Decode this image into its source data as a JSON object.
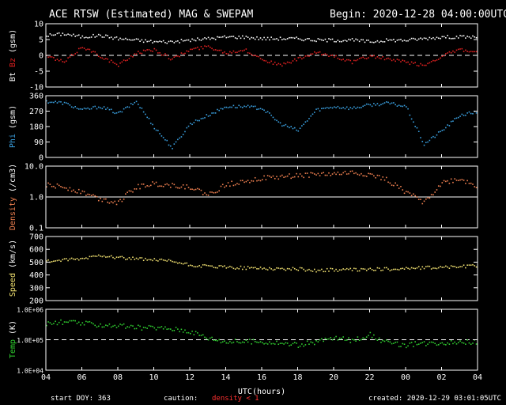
{
  "header": {
    "title": "ACE RTSW (Estimated) MAG & SWEPAM",
    "begin": "Begin: 2020-12-28 04:00:00UTC"
  },
  "footer": {
    "start_doy": "start DOY: 363",
    "caution": "caution:",
    "density_note": "density < 1",
    "created": "created: 2020-12-29 03:01:05UTC"
  },
  "colors": {
    "background": "#000000",
    "axes": "#ffffff",
    "bt": "#ffffff",
    "bz": "#e02020",
    "phi": "#3aa0e0",
    "density": "#f08050",
    "speed": "#f0e070",
    "temp": "#30d030",
    "caution": "#ff3030"
  },
  "chart_data": [
    {
      "type": "scatter",
      "title": "",
      "ylabel_parts": [
        "Bt",
        "Bz",
        "(gsm)"
      ],
      "ylim": [
        -10,
        10
      ],
      "yticks": [
        10,
        5,
        0,
        -5,
        -10
      ],
      "ytick_labels": [
        "10",
        "5",
        "0",
        "-5",
        "-10"
      ],
      "reference_line": 0,
      "series": [
        {
          "name": "Bt",
          "color": "#ffffff",
          "x": [
            0,
            1,
            2,
            3,
            4,
            5,
            6,
            7,
            8,
            9,
            10,
            11,
            12,
            13,
            14,
            15,
            16,
            17,
            18,
            19,
            20,
            21,
            22,
            23,
            24
          ],
          "y": [
            6.5,
            7,
            6,
            6.5,
            5.5,
            5,
            4.5,
            4.5,
            5,
            5.5,
            6,
            6,
            5.5,
            5.5,
            5.5,
            5,
            5,
            5,
            4.5,
            5,
            5,
            5.5,
            6,
            6,
            6
          ]
        },
        {
          "name": "Bz",
          "color": "#e02020",
          "x": [
            0,
            1,
            2,
            3,
            4,
            5,
            6,
            7,
            8,
            9,
            10,
            11,
            12,
            13,
            14,
            15,
            16,
            17,
            18,
            19,
            20,
            21,
            22,
            23,
            24
          ],
          "y": [
            0,
            -2,
            3,
            0,
            -3,
            1,
            2,
            -1,
            2,
            3,
            1,
            2,
            -1,
            -3,
            -1,
            1,
            0,
            -2,
            0,
            -1,
            -2,
            -3,
            0,
            2,
            1
          ]
        }
      ]
    },
    {
      "type": "scatter",
      "title": "",
      "ylabel_parts": [
        "Phi",
        "(gsm)"
      ],
      "ylim": [
        0,
        360
      ],
      "yticks": [
        360,
        270,
        180,
        90,
        0
      ],
      "ytick_labels": [
        "360",
        "270",
        "180",
        "90",
        "0"
      ],
      "series": [
        {
          "name": "Phi",
          "color": "#3aa0e0",
          "x": [
            0,
            1,
            2,
            3,
            4,
            5,
            6,
            7,
            8,
            9,
            10,
            11,
            12,
            13,
            14,
            15,
            16,
            17,
            18,
            19,
            20,
            21,
            22,
            23,
            24
          ],
          "y": [
            330,
            320,
            280,
            300,
            260,
            330,
            180,
            60,
            200,
            250,
            300,
            300,
            290,
            200,
            160,
            280,
            300,
            290,
            310,
            320,
            300,
            80,
            160,
            250,
            270
          ]
        }
      ]
    },
    {
      "type": "scatter",
      "title": "",
      "ylabel_parts": [
        "Density",
        "(/cm3)"
      ],
      "yscale": "log",
      "ylim": [
        0.1,
        10
      ],
      "yticks": [
        10,
        1,
        0.1
      ],
      "ytick_labels": [
        "10.0",
        "1.0",
        "0.1"
      ],
      "reference_line": 1,
      "series": [
        {
          "name": "Density",
          "color": "#f08050",
          "x": [
            0,
            1,
            2,
            3,
            4,
            5,
            6,
            7,
            8,
            9,
            10,
            11,
            12,
            13,
            14,
            15,
            16,
            17,
            18,
            19,
            20,
            21,
            22,
            23,
            24
          ],
          "y": [
            2.5,
            2.2,
            1.5,
            0.9,
            0.7,
            2.2,
            2.8,
            2.5,
            2.2,
            1.2,
            2.6,
            3.5,
            4.2,
            4.6,
            5.2,
            5.6,
            5.8,
            6.4,
            5.5,
            3.6,
            1.5,
            0.7,
            3,
            4,
            2.2
          ]
        }
      ]
    },
    {
      "type": "scatter",
      "title": "",
      "ylabel_parts": [
        "Speed",
        "(km/s)"
      ],
      "ylim": [
        200,
        700
      ],
      "yticks": [
        700,
        600,
        500,
        400,
        300,
        200
      ],
      "ytick_labels": [
        "700",
        "600",
        "500",
        "400",
        "300",
        "200"
      ],
      "series": [
        {
          "name": "Speed",
          "color": "#f0e070",
          "x": [
            0,
            1,
            2,
            3,
            4,
            5,
            6,
            7,
            8,
            9,
            10,
            11,
            12,
            13,
            14,
            15,
            16,
            17,
            18,
            19,
            20,
            21,
            22,
            23,
            24
          ],
          "y": [
            510,
            520,
            530,
            560,
            540,
            530,
            520,
            510,
            480,
            470,
            465,
            460,
            458,
            452,
            450,
            440,
            445,
            445,
            448,
            450,
            455,
            460,
            465,
            470,
            475
          ]
        }
      ]
    },
    {
      "type": "scatter",
      "title": "",
      "ylabel_parts": [
        "Temp",
        "(K)"
      ],
      "yscale": "log",
      "ylim": [
        10000,
        1000000
      ],
      "yticks": [
        1000000,
        100000,
        10000
      ],
      "ytick_labels": [
        "1.0E+06",
        "1.0E+05",
        "1.0E+04"
      ],
      "reference_line": 100000,
      "series": [
        {
          "name": "Temp",
          "color": "#30d030",
          "x": [
            0,
            1,
            2,
            3,
            4,
            5,
            6,
            7,
            8,
            9,
            10,
            11,
            12,
            13,
            14,
            15,
            16,
            17,
            18,
            19,
            20,
            21,
            22,
            23,
            24
          ],
          "y": [
            350000,
            400000,
            360000,
            320000,
            300000,
            260000,
            260000,
            240000,
            200000,
            120000,
            90000,
            90000,
            90000,
            80000,
            70000,
            90000,
            120000,
            100000,
            150000,
            80000,
            70000,
            80000,
            85000,
            90000,
            85000
          ]
        }
      ]
    }
  ],
  "xaxis": {
    "label": "UTC(hours)",
    "xlim": [
      0,
      24
    ],
    "tick_positions": [
      0,
      2,
      4,
      6,
      8,
      10,
      12,
      14,
      16,
      18,
      20,
      22,
      24
    ],
    "tick_labels": [
      "04",
      "06",
      "08",
      "10",
      "12",
      "14",
      "16",
      "18",
      "20",
      "22",
      "00",
      "02",
      "04"
    ]
  }
}
